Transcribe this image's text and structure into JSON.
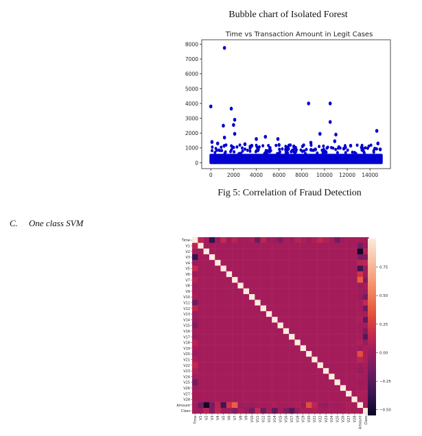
{
  "document": {
    "title": "Bubble chart of Isolated Forest",
    "caption": "Fig 5: Correlation of Fraud Detection",
    "section_number": "C.",
    "section_title": "One class SVM"
  },
  "chart_data": [
    {
      "type": "scatter",
      "title": "Time vs Transaction Amount in Legit Cases",
      "xlabel": "",
      "ylabel": "",
      "xlim": [
        -800,
        15800
      ],
      "ylim": [
        -400,
        8300
      ],
      "xticks": [
        0,
        2000,
        4000,
        6000,
        8000,
        10000,
        12000,
        14000
      ],
      "yticks": [
        0,
        1000,
        2000,
        3000,
        4000,
        5000,
        6000,
        7000,
        8000
      ],
      "color": "#0000d0",
      "outliers": [
        {
          "x": 1200,
          "y": 7750
        },
        {
          "x": 0,
          "y": 3800
        },
        {
          "x": 1800,
          "y": 3650
        },
        {
          "x": 8600,
          "y": 4000
        },
        {
          "x": 10500,
          "y": 4000
        },
        {
          "x": 2100,
          "y": 2900
        },
        {
          "x": 2000,
          "y": 2550
        },
        {
          "x": 1100,
          "y": 2500
        },
        {
          "x": 10500,
          "y": 2750
        },
        {
          "x": 14600,
          "y": 2150
        },
        {
          "x": 2100,
          "y": 1950
        },
        {
          "x": 9600,
          "y": 1950
        },
        {
          "x": 11000,
          "y": 1900
        },
        {
          "x": 1200,
          "y": 1700
        },
        {
          "x": 4800,
          "y": 1750
        },
        {
          "x": 4000,
          "y": 1600
        },
        {
          "x": 5900,
          "y": 1600
        },
        {
          "x": 10900,
          "y": 1450
        },
        {
          "x": 8800,
          "y": 1350
        },
        {
          "x": 14700,
          "y": 1300
        },
        {
          "x": 6000,
          "y": 1200
        },
        {
          "x": 600,
          "y": 1300
        },
        {
          "x": 3000,
          "y": 1250
        },
        {
          "x": 12300,
          "y": 1150
        },
        {
          "x": 7300,
          "y": 1100
        },
        {
          "x": 13300,
          "y": 1000
        },
        {
          "x": 14900,
          "y": 900
        },
        {
          "x": 3600,
          "y": 1150
        },
        {
          "x": 9200,
          "y": 900
        },
        {
          "x": 11700,
          "y": 950
        },
        {
          "x": 5200,
          "y": 1000
        },
        {
          "x": 100,
          "y": 1400
        }
      ],
      "dense_band": {
        "x_start": 0,
        "x_end": 15000,
        "y_min": 0,
        "y_max": 600
      }
    },
    {
      "type": "heatmap",
      "labels": [
        "Time",
        "V1",
        "V2",
        "V3",
        "V4",
        "V5",
        "V6",
        "V7",
        "V8",
        "V9",
        "V10",
        "V11",
        "V12",
        "V13",
        "V14",
        "V15",
        "V16",
        "V17",
        "V18",
        "V19",
        "V20",
        "V21",
        "V22",
        "V23",
        "V24",
        "V25",
        "V26",
        "V27",
        "V28",
        "Amount",
        "Class"
      ],
      "colorbar_ticks": [
        "0.75",
        "0.50",
        "0.25",
        "0.00",
        "−0.25",
        "−0.50"
      ],
      "colorbar_values": [
        0.75,
        0.5,
        0.25,
        0.0,
        -0.25,
        -0.5
      ],
      "vmin": -0.55,
      "vmax": 1.0,
      "diagonal": 1.0,
      "off_diagonal": 0.0,
      "time_corr": [
        1,
        0.12,
        -0.01,
        -0.42,
        -0.1,
        0.17,
        -0.06,
        0.08,
        -0.04,
        -0.01,
        0.03,
        -0.25,
        0.12,
        -0.07,
        -0.1,
        -0.18,
        0.01,
        -0.07,
        0.09,
        0.03,
        -0.05,
        0.04,
        0.14,
        0.05,
        -0.02,
        -0.23,
        -0.04,
        -0.01,
        -0.01,
        -0.01,
        -0.01
      ],
      "amount_corr": [
        -0.01,
        -0.23,
        -0.53,
        -0.21,
        0.1,
        -0.39,
        0.22,
        0.4,
        -0.1,
        -0.04,
        -0.1,
        0.0,
        -0.01,
        0.01,
        0.03,
        -0.0,
        -0.0,
        0.01,
        0.04,
        -0.06,
        0.34,
        0.11,
        -0.06,
        -0.11,
        0.01,
        -0.05,
        -0.0,
        0.03,
        0.01,
        1,
        0.01
      ],
      "class_corr": [
        -0.01,
        -0.1,
        0.09,
        -0.19,
        0.13,
        -0.09,
        -0.04,
        -0.19,
        0.02,
        -0.1,
        -0.22,
        0.15,
        -0.26,
        -0.0,
        -0.3,
        -0.0,
        -0.2,
        -0.33,
        -0.11,
        0.03,
        0.02,
        0.04,
        0.0,
        -0.0,
        -0.01,
        0.0,
        0.0,
        0.02,
        0.01,
        0.01,
        1
      ]
    }
  ]
}
